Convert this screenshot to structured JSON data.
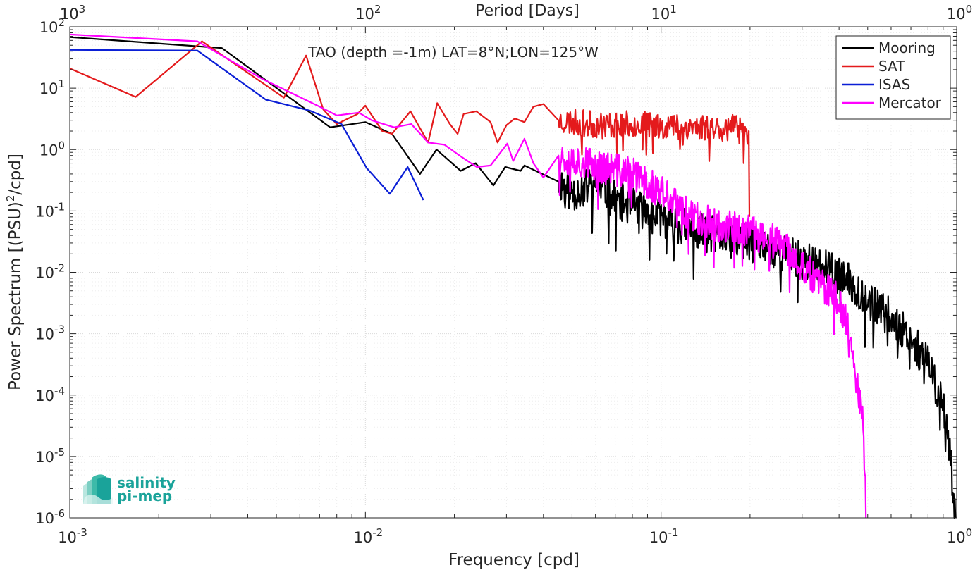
{
  "chart_data": {
    "type": "line",
    "title": "TAO (depth =-1m) LAT=8°N;LON=125°W",
    "xlabel": "Frequency [cpd]",
    "ylabel": "Power Spectrum [(PSU)",
    "ylabel_sup": "2",
    "ylabel_tail": "/cpd]",
    "top_axis_label": "Period [Days]",
    "x_scale": "log",
    "y_scale": "log",
    "xlim": [
      0.001,
      1
    ],
    "ylim": [
      1e-06,
      100
    ],
    "grid": true,
    "legend_position": "top-right",
    "x_ticks": [
      {
        "value": 0.001,
        "base": "10",
        "exp": "-3"
      },
      {
        "value": 0.01,
        "base": "10",
        "exp": "-2"
      },
      {
        "value": 0.1,
        "base": "10",
        "exp": "-1"
      },
      {
        "value": 1,
        "base": "10",
        "exp": "0"
      }
    ],
    "top_ticks": [
      {
        "value": 0.001,
        "base": "10",
        "exp": "3"
      },
      {
        "value": 0.01,
        "base": "10",
        "exp": "2"
      },
      {
        "value": 0.1,
        "base": "10",
        "exp": "1"
      },
      {
        "value": 1,
        "base": "10",
        "exp": "0"
      }
    ],
    "y_ticks": [
      {
        "value": 100,
        "base": "10",
        "exp": "2"
      },
      {
        "value": 10,
        "base": "10",
        "exp": "1"
      },
      {
        "value": 1,
        "base": "10",
        "exp": "0"
      },
      {
        "value": 0.1,
        "base": "10",
        "exp": "-1"
      },
      {
        "value": 0.01,
        "base": "10",
        "exp": "-2"
      },
      {
        "value": 0.001,
        "base": "10",
        "exp": "-3"
      },
      {
        "value": 0.0001,
        "base": "10",
        "exp": "-4"
      },
      {
        "value": 1e-05,
        "base": "10",
        "exp": "-5"
      },
      {
        "value": 1e-06,
        "base": "10",
        "exp": "-6"
      }
    ],
    "series": [
      {
        "name": "Mooring",
        "color": "#000000",
        "noisy_tail": {
          "x_start": 0.045,
          "x_end": 0.99,
          "points": 720,
          "seed": 11,
          "amplitude": 0.32
        },
        "x": [
          0.001,
          0.00273,
          0.00327,
          0.0076,
          0.01,
          0.0123,
          0.0153,
          0.0174,
          0.021,
          0.0236,
          0.0271,
          0.0297,
          0.0335,
          0.0345,
          0.045,
          0.05,
          0.06,
          0.07,
          0.08,
          0.1,
          0.12,
          0.15,
          0.2,
          0.25,
          0.3,
          0.35,
          0.4,
          0.45,
          0.5,
          0.55,
          0.6,
          0.7,
          0.8,
          0.9,
          0.95,
          0.99
        ],
        "y": [
          68,
          48,
          45,
          2.3,
          2.8,
          1.8,
          0.4,
          1.0,
          0.45,
          0.6,
          0.26,
          0.52,
          0.45,
          0.55,
          0.3,
          0.2,
          0.28,
          0.15,
          0.12,
          0.08,
          0.055,
          0.04,
          0.03,
          0.022,
          0.016,
          0.012,
          0.0085,
          0.006,
          0.0035,
          0.0025,
          0.0018,
          0.0009,
          0.0003,
          7e-05,
          1.2e-05,
          1e-06
        ]
      },
      {
        "name": "SAT",
        "color": "#e41a1c",
        "noisy_tail": {
          "x_start": 0.045,
          "x_end": 0.198,
          "points": 260,
          "seed": 23,
          "amplitude": 0.22
        },
        "x": [
          0.001,
          0.00167,
          0.0028,
          0.0053,
          0.0063,
          0.0072,
          0.008,
          0.0094,
          0.01,
          0.0114,
          0.0123,
          0.0142,
          0.0163,
          0.0175,
          0.0193,
          0.0205,
          0.0215,
          0.0237,
          0.0265,
          0.028,
          0.03,
          0.032,
          0.0345,
          0.037,
          0.04,
          0.045,
          0.06,
          0.08,
          0.1,
          0.12,
          0.15,
          0.18,
          0.195,
          0.198,
          0.199
        ],
        "y": [
          21,
          7.2,
          58,
          7.0,
          34,
          4.5,
          2.6,
          3.8,
          5.2,
          2.0,
          1.8,
          4.2,
          1.3,
          5.7,
          2.6,
          1.8,
          3.8,
          4.2,
          2.8,
          1.3,
          2.5,
          3.2,
          2.8,
          5.0,
          5.5,
          3.0,
          2.5,
          2.6,
          2.5,
          2.4,
          2.3,
          2.2,
          2.0,
          2.0,
          0.08
        ]
      },
      {
        "name": "ISAS",
        "color": "#0b1fd6",
        "x": [
          0.001,
          0.0027,
          0.0046,
          0.0065,
          0.0083,
          0.0101,
          0.0121,
          0.0139,
          0.0157
        ],
        "y": [
          42,
          41,
          6.5,
          4.3,
          2.6,
          0.5,
          0.19,
          0.52,
          0.15
        ]
      },
      {
        "name": "Mercator",
        "color": "#ff00ff",
        "noisy_tail": {
          "x_start": 0.045,
          "x_end": 0.493,
          "points": 560,
          "seed": 37,
          "amplitude": 0.28
        },
        "x": [
          0.001,
          0.0027,
          0.0045,
          0.007,
          0.008,
          0.0095,
          0.0105,
          0.0125,
          0.0143,
          0.0163,
          0.0185,
          0.0212,
          0.0238,
          0.0265,
          0.0302,
          0.0316,
          0.0345,
          0.037,
          0.04,
          0.045,
          0.06,
          0.08,
          0.1,
          0.12,
          0.15,
          0.2,
          0.25,
          0.3,
          0.35,
          0.4,
          0.44,
          0.46,
          0.48,
          0.49,
          0.493
        ],
        "y": [
          75,
          58,
          14,
          5.0,
          3.6,
          4.0,
          3.0,
          2.3,
          2.6,
          1.3,
          1.2,
          0.75,
          0.52,
          0.55,
          1.25,
          0.65,
          1.5,
          0.6,
          0.35,
          0.8,
          0.55,
          0.4,
          0.2,
          0.1,
          0.06,
          0.045,
          0.03,
          0.013,
          0.006,
          0.0035,
          0.0009,
          0.00015,
          4e-05,
          6e-06,
          1e-06
        ]
      }
    ]
  },
  "logo": {
    "line1": "salinity",
    "line2": "pi-mep"
  }
}
